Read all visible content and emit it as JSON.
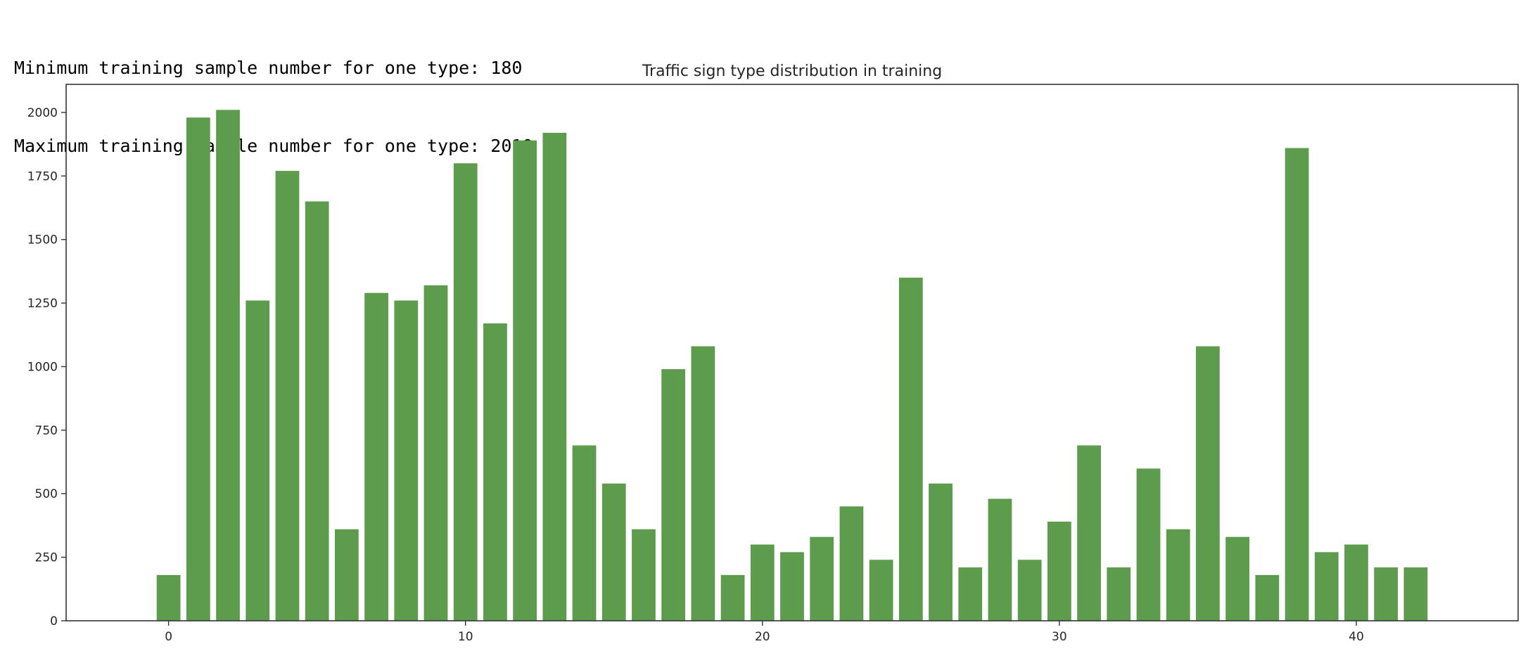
{
  "output": {
    "lines": [
      "Minimum training sample number for one type: 180",
      "Maximum training sample number for one type: 2010"
    ]
  },
  "chart_data": {
    "type": "bar",
    "title": "Traffic sign type distribution in training",
    "xlabel": "",
    "ylabel": "",
    "x": [
      0,
      1,
      2,
      3,
      4,
      5,
      6,
      7,
      8,
      9,
      10,
      11,
      12,
      13,
      14,
      15,
      16,
      17,
      18,
      19,
      20,
      21,
      22,
      23,
      24,
      25,
      26,
      27,
      28,
      29,
      30,
      31,
      32,
      33,
      34,
      35,
      36,
      37,
      38,
      39,
      40,
      41,
      42
    ],
    "values": [
      180,
      1980,
      2010,
      1260,
      1770,
      1650,
      360,
      1290,
      1260,
      1320,
      1800,
      1170,
      1890,
      1920,
      690,
      540,
      360,
      990,
      1080,
      180,
      300,
      270,
      330,
      450,
      240,
      1350,
      540,
      210,
      480,
      240,
      390,
      690,
      210,
      599,
      360,
      1080,
      330,
      180,
      1860,
      270,
      300,
      210,
      210
    ],
    "xlim": [
      -3.45,
      45.45
    ],
    "ylim": [
      0,
      2110.5
    ],
    "xticks": [
      0,
      10,
      20,
      30,
      40
    ],
    "yticks": [
      0,
      250,
      500,
      750,
      1000,
      1250,
      1500,
      1750,
      2000
    ],
    "bar_width": 0.8,
    "bar_color": "#5d9c4d",
    "grid": false,
    "legend": false
  }
}
